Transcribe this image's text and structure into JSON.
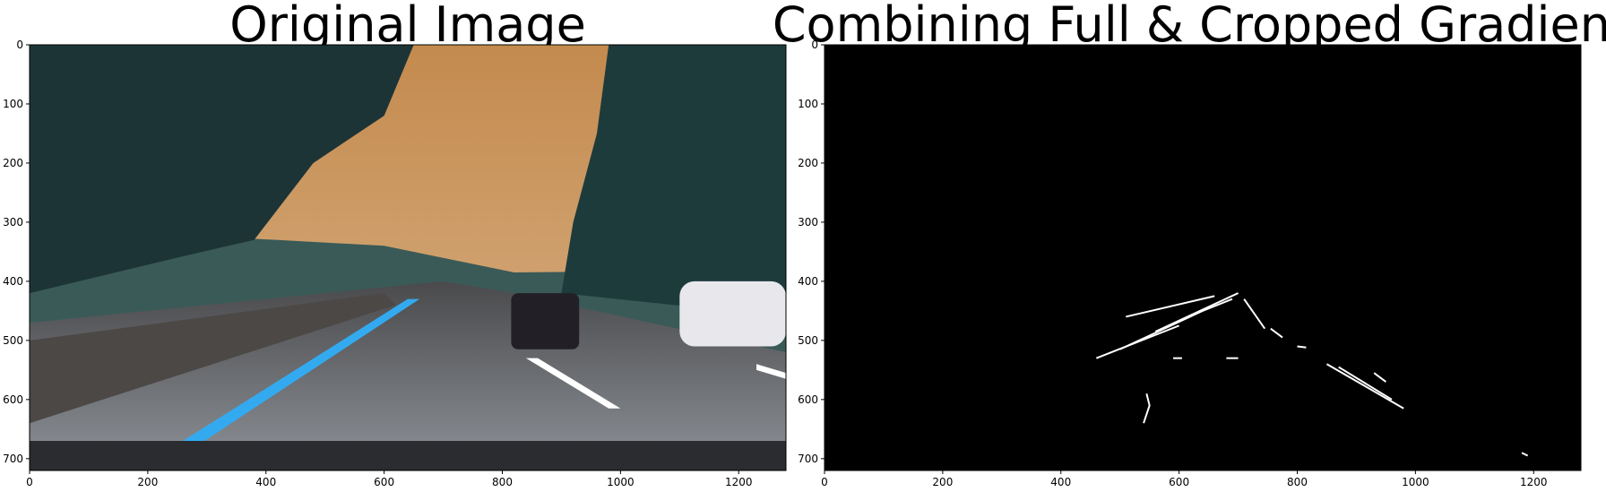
{
  "chart_data": [
    {
      "type": "image",
      "title": "Original Image",
      "xlim": [
        0,
        1280
      ],
      "ylim": [
        720,
        0
      ],
      "xticks": [
        0,
        200,
        400,
        600,
        800,
        1000,
        1200
      ],
      "yticks": [
        0,
        100,
        200,
        300,
        400,
        500,
        600,
        700
      ]
    },
    {
      "type": "image",
      "title": "Combining Full & Cropped Gradient",
      "xlim": [
        0,
        1280
      ],
      "ylim": [
        720,
        0
      ],
      "xticks": [
        0,
        200,
        400,
        600,
        800,
        1000,
        1200
      ],
      "yticks": [
        0,
        100,
        200,
        300,
        400,
        500,
        600,
        700
      ]
    }
  ]
}
